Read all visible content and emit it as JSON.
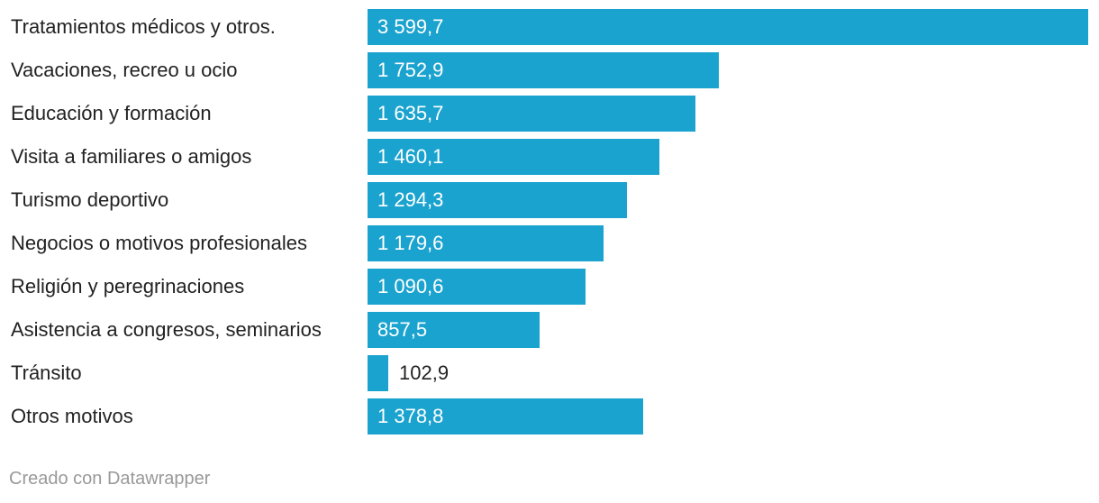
{
  "chart_data": {
    "type": "bar",
    "orientation": "horizontal",
    "categories": [
      "Tratamientos médicos y otros.",
      "Vacaciones, recreo u ocio",
      "Educación y formación",
      "Visita a familiares o amigos",
      "Turismo deportivo",
      "Negocios o motivos profesionales",
      "Religión y peregrinaciones",
      "Asistencia a congresos, seminarios",
      "Tránsito",
      "Otros motivos"
    ],
    "values": [
      3599.7,
      1752.9,
      1635.7,
      1460.1,
      1294.3,
      1179.6,
      1090.6,
      857.5,
      102.9,
      1378.8
    ],
    "value_labels": [
      "3 599,7",
      "1 752,9",
      "1 635,7",
      "1 460,1",
      "1 294,3",
      "1 179,6",
      "1 090,6",
      "857,5",
      "102,9",
      "1 378,8"
    ],
    "bar_color": "#1ba3cf",
    "grid": false,
    "legend": "none"
  },
  "footer": {
    "credit": "Creado con Datawrapper"
  }
}
